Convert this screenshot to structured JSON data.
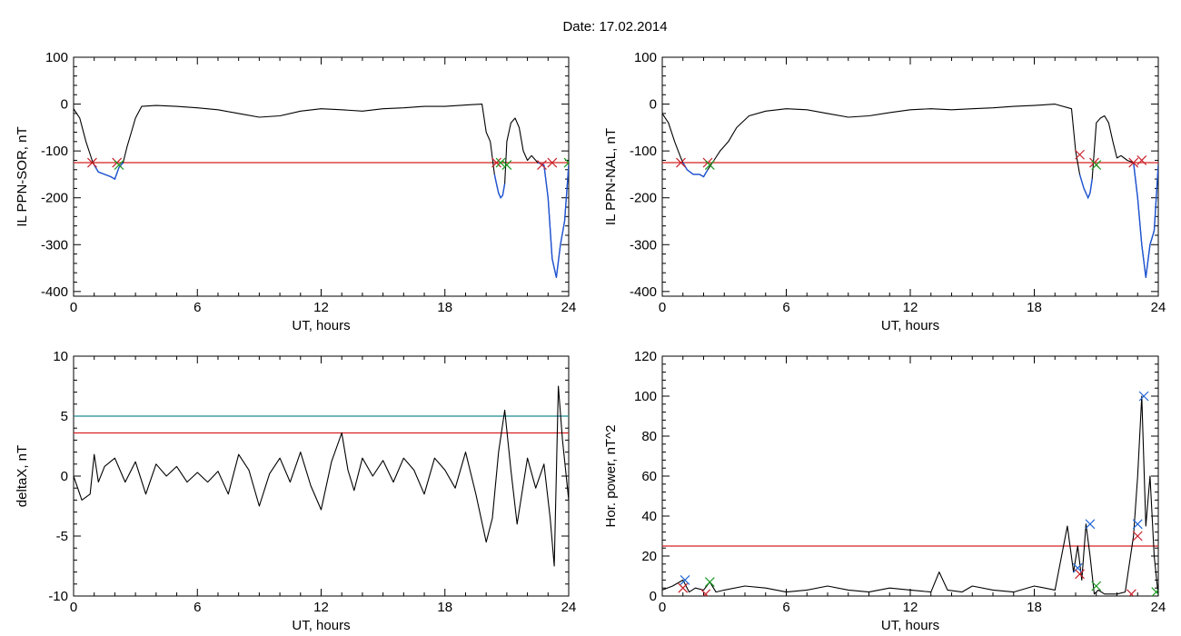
{
  "figure": {
    "title": "Date:  17.02.2014"
  },
  "colors": {
    "data": "#000000",
    "threshold": "#d62020",
    "threshold2": "#1a8a95",
    "below": "#1f55d6",
    "marker_red": "#c8202a",
    "marker_green": "#1a9a22",
    "marker_blue": "#1f66d6"
  },
  "chart_data": [
    {
      "type": "line",
      "xlabel": "UT, hours",
      "ylabel": "IL PPN-SOR, nT",
      "xlim": [
        0,
        24
      ],
      "ylim": [
        -410,
        100
      ],
      "xticks": [
        0,
        6,
        12,
        18,
        24
      ],
      "yticks": [
        100,
        0,
        -100,
        -200,
        -300,
        -400
      ],
      "thresholds": [
        {
          "value": -125,
          "color": "red"
        }
      ],
      "series": [
        {
          "x": [
            0,
            0.3,
            0.6,
            0.9,
            1.0,
            1.2,
            1.5,
            1.8,
            2.0,
            2.2,
            2.4,
            2.6,
            2.8,
            3.0,
            3.3,
            4,
            5,
            6,
            7,
            8,
            9,
            10,
            11,
            12,
            13,
            14,
            15,
            16,
            17,
            18,
            19,
            19.8,
            20.0,
            20.2,
            20.4,
            20.5,
            20.6,
            20.7,
            20.8,
            20.9,
            21.0,
            21.2,
            21.4,
            21.6,
            21.8,
            22.0,
            22.2,
            22.5,
            22.8,
            23.0,
            23.2,
            23.4,
            23.6,
            23.8,
            24
          ],
          "y": [
            -10,
            -30,
            -80,
            -120,
            -130,
            -145,
            -150,
            -155,
            -160,
            -135,
            -125,
            -90,
            -60,
            -30,
            -5,
            -3,
            -5,
            -8,
            -12,
            -20,
            -28,
            -25,
            -15,
            -10,
            -12,
            -15,
            -10,
            -8,
            -5,
            -5,
            -2,
            0,
            -60,
            -80,
            -150,
            -170,
            -190,
            -200,
            -195,
            -170,
            -80,
            -40,
            -30,
            -50,
            -100,
            -120,
            -110,
            -125,
            -130,
            -200,
            -330,
            -370,
            -300,
            -250,
            -130
          ]
        }
      ],
      "markers": [
        {
          "x": 0.9,
          "y": -125,
          "color": "red"
        },
        {
          "x": 2.1,
          "y": -125,
          "color": "red"
        },
        {
          "x": 2.2,
          "y": -130,
          "color": "green"
        },
        {
          "x": 20.5,
          "y": -125,
          "color": "red"
        },
        {
          "x": 20.7,
          "y": -125,
          "color": "green"
        },
        {
          "x": 21.0,
          "y": -130,
          "color": "green"
        },
        {
          "x": 22.7,
          "y": -130,
          "color": "red"
        },
        {
          "x": 23.2,
          "y": -125,
          "color": "red"
        },
        {
          "x": 24,
          "y": -125,
          "color": "green"
        }
      ]
    },
    {
      "type": "line",
      "xlabel": "UT, hours",
      "ylabel": "IL PPN-NAL, nT",
      "xlim": [
        0,
        24
      ],
      "ylim": [
        -410,
        100
      ],
      "xticks": [
        0,
        6,
        12,
        18,
        24
      ],
      "yticks": [
        100,
        0,
        -100,
        -200,
        -300,
        -400
      ],
      "thresholds": [
        {
          "value": -125,
          "color": "red"
        }
      ],
      "series": [
        {
          "x": [
            0,
            0.3,
            0.6,
            0.9,
            1.0,
            1.2,
            1.5,
            1.8,
            2.0,
            2.2,
            2.5,
            2.8,
            3.2,
            3.6,
            4.2,
            5,
            6,
            7,
            8,
            9,
            10,
            11,
            12,
            13,
            14,
            15,
            16,
            17,
            18,
            19,
            19.8,
            20.0,
            20.2,
            20.4,
            20.5,
            20.6,
            20.7,
            20.8,
            20.9,
            21.0,
            21.2,
            21.4,
            21.6,
            21.8,
            22.0,
            22.2,
            22.5,
            22.8,
            23.0,
            23.2,
            23.4,
            23.6,
            23.8,
            24
          ],
          "y": [
            -20,
            -40,
            -80,
            -115,
            -125,
            -140,
            -150,
            -150,
            -155,
            -140,
            -120,
            -100,
            -80,
            -50,
            -25,
            -15,
            -10,
            -12,
            -20,
            -28,
            -25,
            -18,
            -12,
            -10,
            -12,
            -10,
            -8,
            -5,
            -3,
            0,
            -10,
            -100,
            -150,
            -180,
            -190,
            -200,
            -190,
            -160,
            -100,
            -40,
            -30,
            -25,
            -40,
            -80,
            -115,
            -110,
            -120,
            -125,
            -200,
            -300,
            -370,
            -300,
            -270,
            -130
          ]
        }
      ],
      "markers": [
        {
          "x": 0.9,
          "y": -125,
          "color": "red"
        },
        {
          "x": 2.2,
          "y": -125,
          "color": "red"
        },
        {
          "x": 2.3,
          "y": -130,
          "color": "green"
        },
        {
          "x": 20.2,
          "y": -108,
          "color": "red"
        },
        {
          "x": 20.9,
          "y": -125,
          "color": "red"
        },
        {
          "x": 21.0,
          "y": -130,
          "color": "green"
        },
        {
          "x": 22.8,
          "y": -125,
          "color": "red"
        },
        {
          "x": 23.2,
          "y": -120,
          "color": "red"
        }
      ]
    },
    {
      "type": "line",
      "xlabel": "UT, hours",
      "ylabel": "deltaX, nT",
      "xlim": [
        0,
        24
      ],
      "ylim": [
        -10,
        10
      ],
      "xticks": [
        0,
        6,
        12,
        18,
        24
      ],
      "yticks": [
        10,
        5,
        0,
        -5,
        -10
      ],
      "thresholds": [
        {
          "value": 5,
          "color": "teal"
        },
        {
          "value": 3.6,
          "color": "red"
        }
      ],
      "series": [
        {
          "x": [
            0,
            0.4,
            0.8,
            1.0,
            1.2,
            1.5,
            2.0,
            2.5,
            3.0,
            3.5,
            4.0,
            4.5,
            5.0,
            5.5,
            6.0,
            6.5,
            7.0,
            7.5,
            8.0,
            8.5,
            9.0,
            9.5,
            10.0,
            10.5,
            11.0,
            11.5,
            12.0,
            12.5,
            13.0,
            13.3,
            13.6,
            14.0,
            14.5,
            15.0,
            15.5,
            16.0,
            16.5,
            17.0,
            17.5,
            18.0,
            18.5,
            19.0,
            19.5,
            20.0,
            20.3,
            20.6,
            20.9,
            21.2,
            21.5,
            22.0,
            22.4,
            22.8,
            23.1,
            23.3,
            23.5,
            23.7,
            24
          ],
          "y": [
            0,
            -2,
            -1.5,
            1.8,
            -0.5,
            0.8,
            1.5,
            -0.5,
            1.2,
            -1.5,
            1.0,
            0.0,
            0.8,
            -0.5,
            0.3,
            -0.5,
            0.4,
            -1.5,
            1.8,
            0.5,
            -2.5,
            0.2,
            1.5,
            -0.5,
            2.0,
            -0.8,
            -2.8,
            1.2,
            3.6,
            0.5,
            -1.2,
            1.5,
            0.0,
            1.3,
            -0.5,
            1.5,
            0.5,
            -1.5,
            1.5,
            0.5,
            -1.0,
            2.0,
            -1.5,
            -5.5,
            -3.5,
            2.0,
            5.5,
            0.5,
            -4.0,
            1.5,
            -1.0,
            1.0,
            -3.5,
            -7.5,
            7.5,
            3.0,
            -2.0
          ]
        }
      ],
      "markers": []
    },
    {
      "type": "line",
      "xlabel": "UT, hours",
      "ylabel": "Hor. power, nT^2",
      "xlim": [
        0,
        24
      ],
      "ylim": [
        0,
        120
      ],
      "xticks": [
        0,
        6,
        12,
        18,
        24
      ],
      "yticks": [
        120,
        100,
        80,
        60,
        40,
        20,
        0
      ],
      "thresholds": [
        {
          "value": 25,
          "color": "red"
        }
      ],
      "series": [
        {
          "x": [
            0,
            0.5,
            1.0,
            1.3,
            1.6,
            2.0,
            2.3,
            2.6,
            3.0,
            4.0,
            5.0,
            6.0,
            7.0,
            8.0,
            9.0,
            10.0,
            11.0,
            12.0,
            13.0,
            13.4,
            13.8,
            14.5,
            15.0,
            16.0,
            17.0,
            18.0,
            19.0,
            19.6,
            19.9,
            20.1,
            20.3,
            20.5,
            20.7,
            20.9,
            21.1,
            21.4,
            22.0,
            22.4,
            22.8,
            23.0,
            23.2,
            23.4,
            23.6,
            23.8,
            24
          ],
          "y": [
            3,
            5,
            8,
            2,
            4,
            3,
            7,
            2,
            3,
            5,
            4,
            2,
            3,
            5,
            3,
            2,
            4,
            3,
            2,
            12,
            3,
            2,
            5,
            3,
            2,
            5,
            3,
            35,
            12,
            25,
            8,
            36,
            20,
            1,
            3,
            1,
            1,
            2,
            30,
            60,
            100,
            35,
            60,
            20,
            0
          ]
        }
      ],
      "markers": [
        {
          "x": 1.1,
          "y": 8,
          "color": "blue"
        },
        {
          "x": 1.0,
          "y": 4,
          "color": "red"
        },
        {
          "x": 2.3,
          "y": 7,
          "color": "green"
        },
        {
          "x": 2.1,
          "y": 1,
          "color": "red"
        },
        {
          "x": 20.1,
          "y": 14,
          "color": "blue"
        },
        {
          "x": 20.2,
          "y": 11,
          "color": "red"
        },
        {
          "x": 20.7,
          "y": 36,
          "color": "blue"
        },
        {
          "x": 21.0,
          "y": 5,
          "color": "green"
        },
        {
          "x": 22.7,
          "y": 1,
          "color": "red"
        },
        {
          "x": 23.0,
          "y": 30,
          "color": "red"
        },
        {
          "x": 23.0,
          "y": 36,
          "color": "blue"
        },
        {
          "x": 23.3,
          "y": 100,
          "color": "blue"
        },
        {
          "x": 23.9,
          "y": 2,
          "color": "green"
        }
      ]
    }
  ]
}
